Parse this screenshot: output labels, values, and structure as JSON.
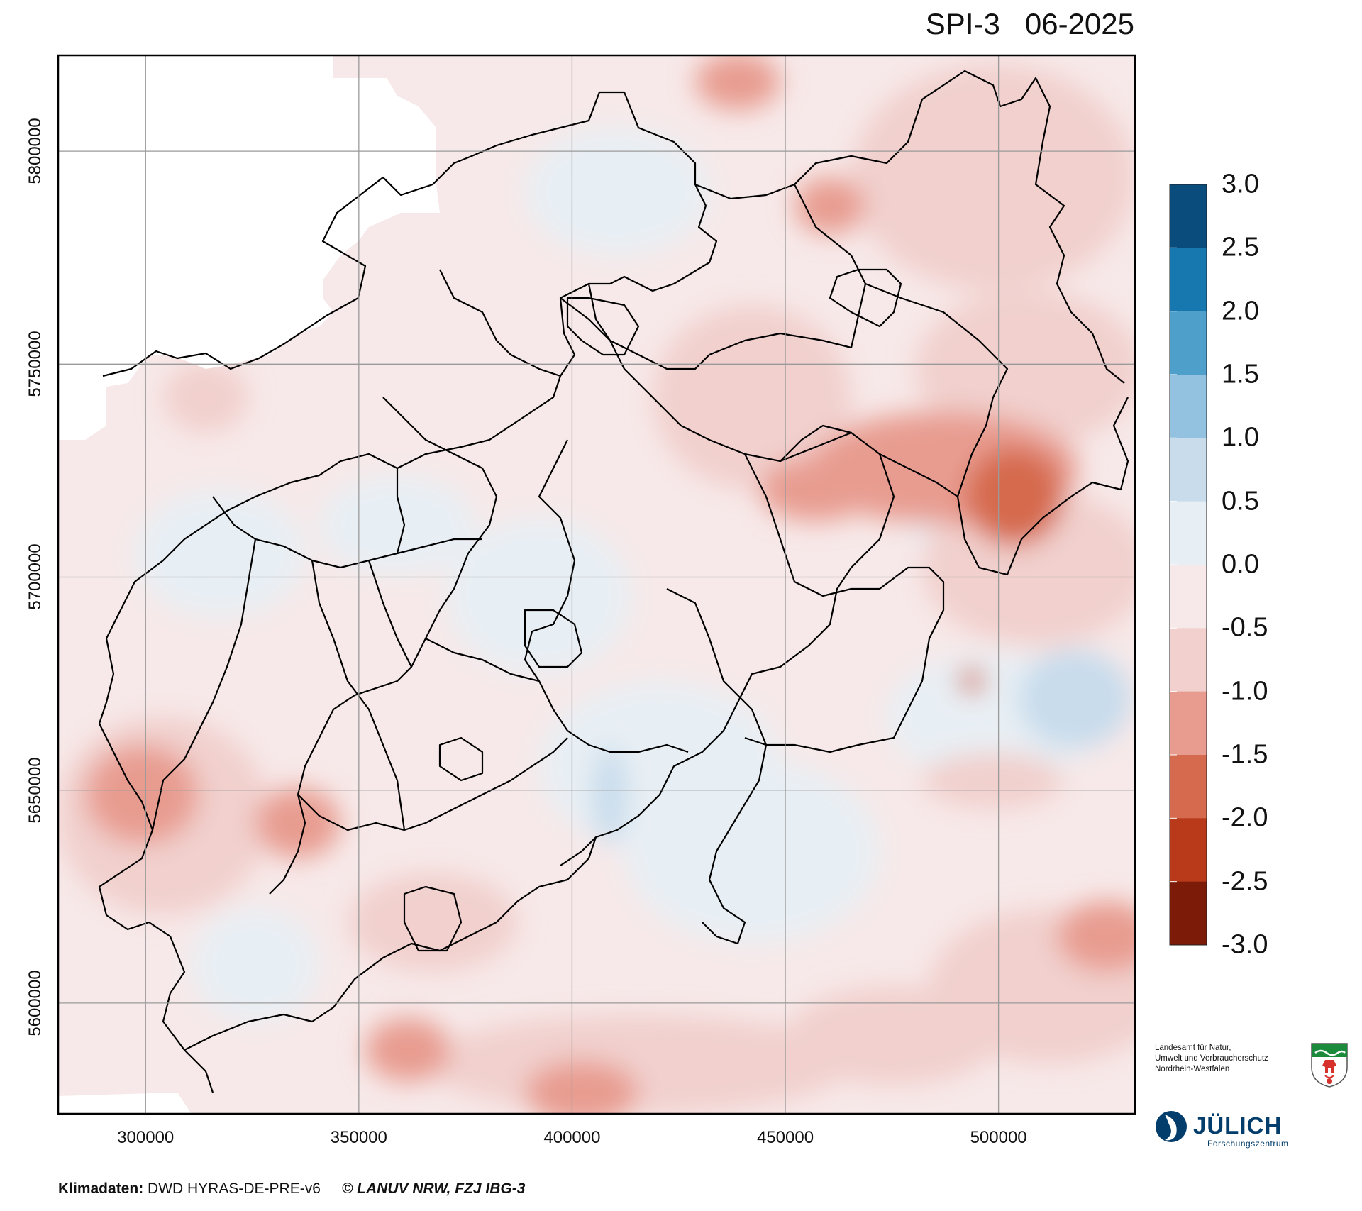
{
  "title": {
    "index": "SPI-3",
    "period": "06-2025"
  },
  "map": {
    "x_axis": {
      "ticks": [
        "300000",
        "350000",
        "400000",
        "450000",
        "500000"
      ],
      "values": [
        300000,
        350000,
        400000,
        450000,
        500000
      ],
      "range": [
        279500,
        532000
      ]
    },
    "y_axis": {
      "ticks": [
        "5800000",
        "5750000",
        "5700000",
        "5650000",
        "5600000"
      ],
      "values": [
        5800000,
        5750000,
        5700000,
        5650000,
        5600000
      ],
      "range": [
        5574000,
        5822500
      ]
    },
    "grid": true
  },
  "legend": {
    "labels": [
      "3.0",
      "2.5",
      "2.0",
      "1.5",
      "1.0",
      "0.5",
      "0.0",
      "-0.5",
      "-1.0",
      "-1.5",
      "-2.0",
      "-2.5",
      "-3.0"
    ],
    "colors": [
      "#0a4c7c",
      "#1778b0",
      "#4f9fcb",
      "#93c1e0",
      "#c8dcec",
      "#e8eff4",
      "#f7e9e9",
      "#f1d0cd",
      "#e89c90",
      "#d66a4e",
      "#b83a1b",
      "#7b1b08"
    ]
  },
  "logos": {
    "lanuv": {
      "lines": [
        "Landesamt für Natur,",
        "Umwelt und Verbraucherschutz",
        "Nordrhein-Westfalen"
      ]
    },
    "juelich": {
      "name": "JÜLICH",
      "sub": "Forschungszentrum"
    }
  },
  "footer": {
    "source_label": "Klimadaten:",
    "source": " DWD HYRAS-DE-PRE-v6",
    "copyright": "© LANUV NRW, FZJ IBG-3"
  }
}
